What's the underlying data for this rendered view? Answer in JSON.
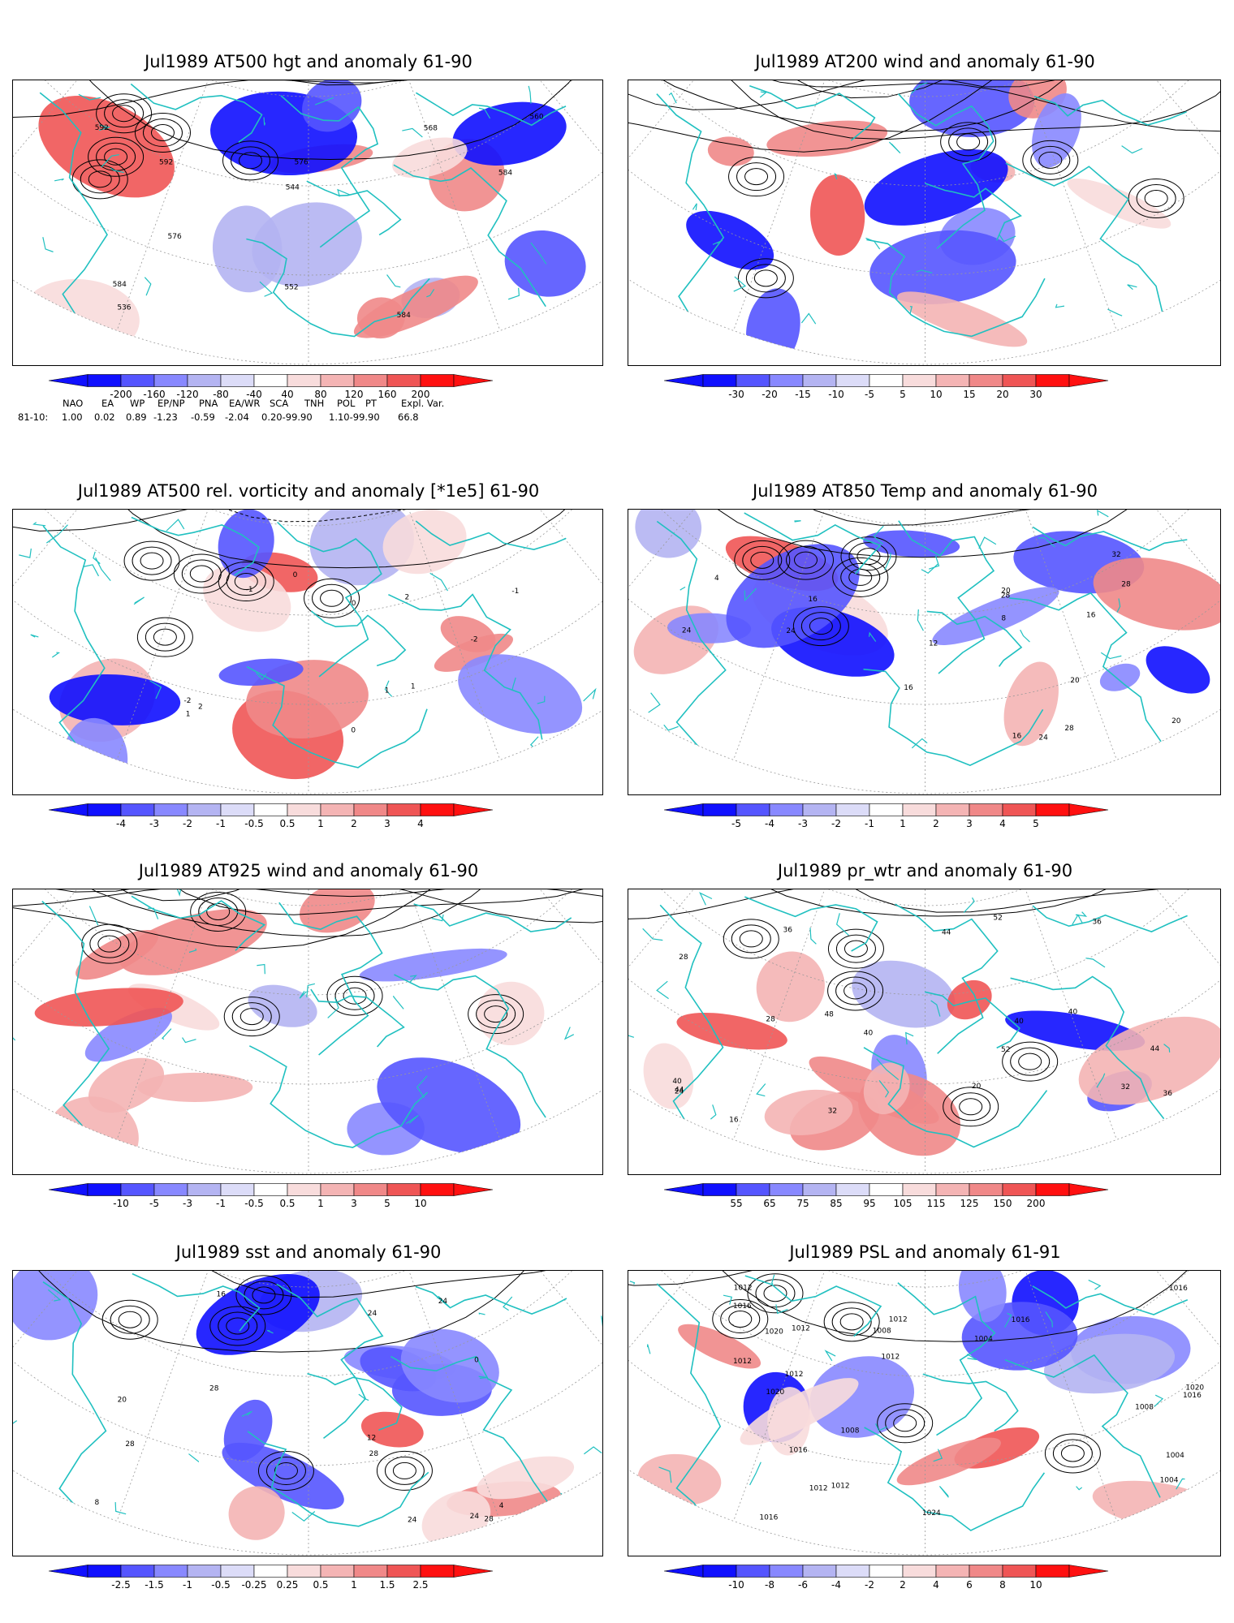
{
  "panels": [
    {
      "title": "Jul1989 AT500 hgt and anomaly 61-90",
      "contour_labels": [
        "536",
        "544",
        "552",
        "560",
        "568",
        "576",
        "576",
        "584",
        "584",
        "584",
        "592",
        "592"
      ],
      "colorbar": [
        "-200",
        "-160",
        "-120",
        "-80",
        "-40",
        "40",
        "80",
        "120",
        "160",
        "200"
      ]
    },
    {
      "title": "Jul1989 AT200 wind and anomaly 61-90",
      "contour_labels": [],
      "colorbar": [
        "-30",
        "-20",
        "-15",
        "-10",
        "-5",
        "5",
        "10",
        "15",
        "20",
        "30"
      ]
    },
    {
      "title": "Jul1989 AT500 rel. vorticity and anomaly [*1e5] 61-90",
      "contour_labels": [
        "-2",
        "-1",
        "0",
        "1",
        "2",
        "-2",
        "1",
        "0",
        "-1",
        "2",
        "0",
        "1"
      ],
      "colorbar": [
        "-4",
        "-3",
        "-2",
        "-1",
        "-0.5",
        "0.5",
        "1",
        "2",
        "3",
        "4"
      ]
    },
    {
      "title": "Jul1989 AT850 Temp and anomaly 61-90",
      "contour_labels": [
        "20",
        "4",
        "8",
        "12",
        "16",
        "16",
        "16",
        "20",
        "24",
        "28",
        "28",
        "32",
        "24",
        "20",
        "16",
        "28",
        "24"
      ],
      "colorbar": [
        "-5",
        "-4",
        "-3",
        "-2",
        "-1",
        "1",
        "2",
        "3",
        "4",
        "5"
      ]
    },
    {
      "title": "Jul1989 AT925 wind and anomaly 61-90",
      "contour_labels": [],
      "colorbar": [
        "-10",
        "-5",
        "-3",
        "-1",
        "-0.5",
        "0.5",
        "1",
        "3",
        "5",
        "10"
      ]
    },
    {
      "title": "Jul1989 pr_wtr and anomaly 61-90",
      "contour_labels": [
        "32",
        "44",
        "40",
        "36",
        "52",
        "48",
        "44",
        "40",
        "36",
        "28",
        "16",
        "24",
        "20",
        "28",
        "32",
        "40",
        "44",
        "36",
        "40",
        "52"
      ],
      "colorbar": [
        "55",
        "65",
        "75",
        "85",
        "95",
        "105",
        "115",
        "125",
        "150",
        "200"
      ]
    },
    {
      "title": "Jul1989 sst and anomaly 61-90",
      "contour_labels": [
        "28",
        "24",
        "28",
        "8",
        "12",
        "16",
        "20",
        "24",
        "24",
        "28",
        "28",
        "24",
        "4",
        "0"
      ],
      "colorbar": [
        "-2.5",
        "-1.5",
        "-1",
        "-0.5",
        "-0.25",
        "0.25",
        "0.5",
        "1",
        "1.5",
        "2.5"
      ]
    },
    {
      "title": "Jul1989 PSL and anomaly 61-91",
      "contour_labels": [
        "1016",
        "1016",
        "1008",
        "1004",
        "1004",
        "1008",
        "1012",
        "1020",
        "1016",
        "1020",
        "1024",
        "1020",
        "1016",
        "1012",
        "1012",
        "1008",
        "1012",
        "1016",
        "1012",
        "1004",
        "1012",
        "1012",
        "1016",
        "1012"
      ],
      "colorbar": [
        "-10",
        "-8",
        "-6",
        "-4",
        "-2",
        "2",
        "4",
        "6",
        "8",
        "10"
      ]
    }
  ],
  "indices": {
    "header": [
      "NAO",
      "EA",
      "WP",
      "EP/NP",
      "PNA",
      "EA/WR",
      "SCA",
      "TNH",
      "POL",
      "PT",
      "Expl. Var."
    ],
    "row_label": "81-10:",
    "values": [
      "1.00",
      "0.02",
      "0.89",
      "-1.23",
      "-0.59",
      "-2.04",
      "0.20-99.90",
      "1.10-99.90",
      "66.8"
    ]
  },
  "colors": {
    "coastline": "#20c0c0",
    "contour": "#000000",
    "grid": "#999999",
    "neg_scale": [
      "#1010ff",
      "#5555ff",
      "#8888ff",
      "#b4b4f2",
      "#dcdcf8"
    ],
    "pos_scale": [
      "#f8dcdc",
      "#f4b4b4",
      "#f08888",
      "#ef5555",
      "#ff1010"
    ]
  }
}
